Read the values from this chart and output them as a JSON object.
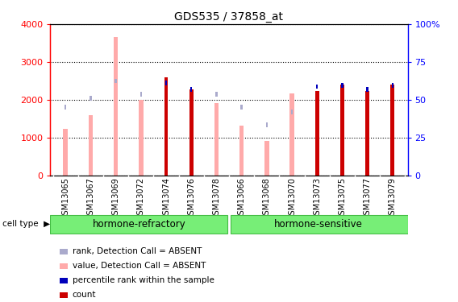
{
  "title": "GDS535 / 37858_at",
  "samples": [
    "GSM13065",
    "GSM13067",
    "GSM13069",
    "GSM13072",
    "GSM13074",
    "GSM13076",
    "GSM13078",
    "GSM13066",
    "GSM13068",
    "GSM13070",
    "GSM13073",
    "GSM13075",
    "GSM13077",
    "GSM13079"
  ],
  "value_absent": [
    1220,
    1580,
    3650,
    2000,
    null,
    null,
    1920,
    1320,
    900,
    2170,
    null,
    null,
    null,
    null
  ],
  "rank_absent_left": [
    1800,
    2040,
    2500,
    2140,
    null,
    null,
    2140,
    1800,
    1330,
    1680,
    null,
    null,
    null,
    null
  ],
  "count": [
    null,
    null,
    null,
    null,
    2600,
    2280,
    null,
    null,
    null,
    null,
    2240,
    2400,
    2230,
    2390
  ],
  "percentile_left": [
    null,
    null,
    null,
    null,
    2440,
    2270,
    null,
    null,
    null,
    null,
    2350,
    2380,
    2270,
    2380
  ],
  "group1_count": 7,
  "group2_count": 7,
  "group1_label": "hormone-refractory",
  "group2_label": "hormone-sensitive",
  "ylim_left": [
    0,
    4000
  ],
  "ylim_right": [
    0,
    100
  ],
  "yticks_left": [
    0,
    1000,
    2000,
    3000,
    4000
  ],
  "ytick_labels_left": [
    "0",
    "1000",
    "2000",
    "3000",
    "4000"
  ],
  "yticks_right": [
    0,
    25,
    50,
    75,
    100
  ],
  "ytick_labels_right": [
    "0",
    "25",
    "50",
    "75",
    "100%"
  ],
  "color_count": "#cc0000",
  "color_percentile": "#0000bb",
  "color_value_absent": "#ffaaaa",
  "color_rank_absent": "#aaaacc",
  "bg_xtick": "#d8d8d8",
  "group_color": "#77ee77",
  "group_border_color": "#44bb44",
  "legend": [
    {
      "label": "count",
      "color": "#cc0000"
    },
    {
      "label": "percentile rank within the sample",
      "color": "#0000bb"
    },
    {
      "label": "value, Detection Call = ABSENT",
      "color": "#ffaaaa"
    },
    {
      "label": "rank, Detection Call = ABSENT",
      "color": "#aaaacc"
    }
  ]
}
